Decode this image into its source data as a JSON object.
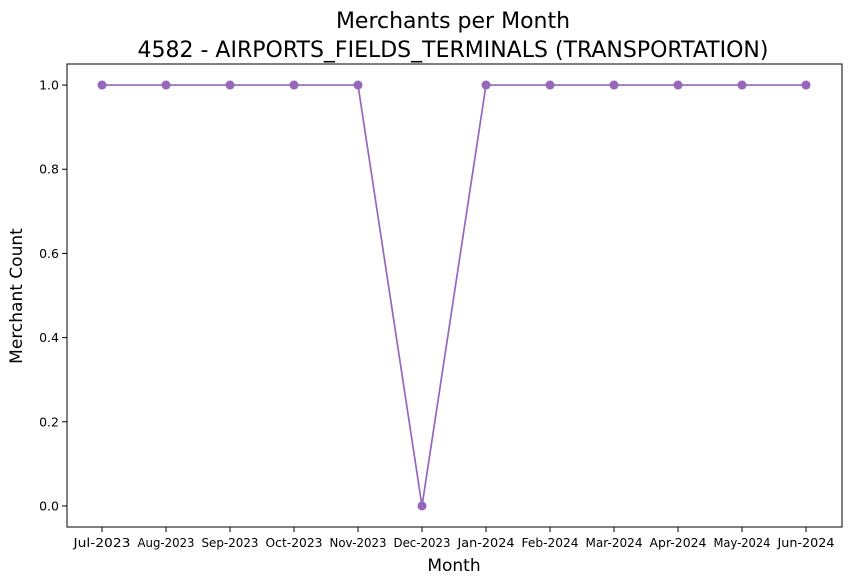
{
  "chart_data": {
    "type": "line",
    "title_line1": "Merchants per Month",
    "title_line2": "4582 - AIRPORTS_FIELDS_TERMINALS (TRANSPORTATION)",
    "xlabel": "Month",
    "ylabel": "Merchant Count",
    "categories": [
      "Jul-2023",
      "Aug-2023",
      "Sep-2023",
      "Oct-2023",
      "Nov-2023",
      "Dec-2023",
      "Jan-2024",
      "Feb-2024",
      "Mar-2024",
      "Apr-2024",
      "May-2024",
      "Jun-2024"
    ],
    "series": [
      {
        "values": [
          1,
          1,
          1,
          1,
          1,
          0,
          1,
          1,
          1,
          1,
          1,
          1
        ],
        "color": "#9467bd"
      }
    ],
    "yticks": [
      0.0,
      0.2,
      0.4,
      0.6,
      0.8,
      1.0
    ],
    "ytick_labels": [
      "0.0",
      "0.2",
      "0.4",
      "0.6",
      "0.8",
      "1.0"
    ],
    "ylim": [
      -0.05,
      1.05
    ],
    "grid": false,
    "legend": "none",
    "markers": "circle"
  }
}
